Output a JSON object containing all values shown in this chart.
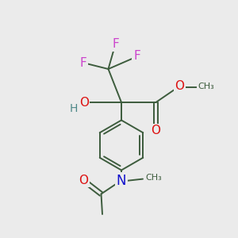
{
  "bg_color": "#ebebeb",
  "bond_color": "#3d5c3d",
  "bond_width": 1.4,
  "F_color": "#cc44cc",
  "O_color": "#dd1111",
  "N_color": "#1111cc",
  "H_color": "#4d8888",
  "font_size": 10,
  "figsize": [
    3.0,
    3.0
  ],
  "dpi": 100,
  "xlim": [
    0,
    10
  ],
  "ylim": [
    0,
    10
  ]
}
